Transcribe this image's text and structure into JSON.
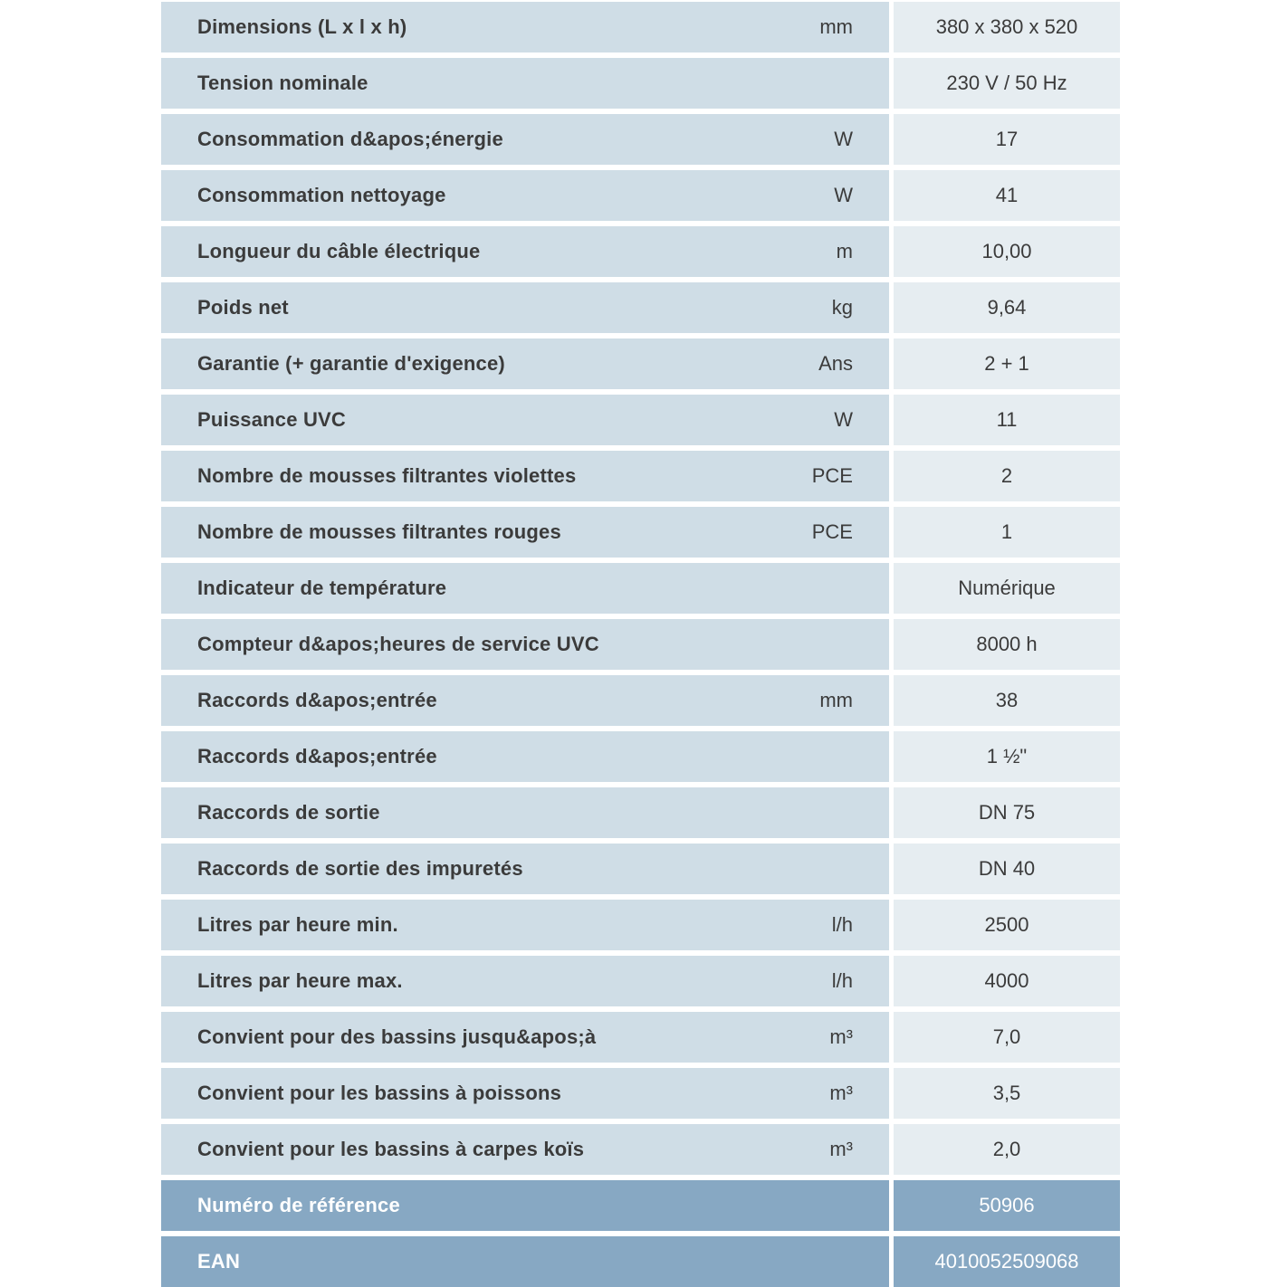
{
  "page": {
    "background": "#ffffff"
  },
  "table": {
    "colors": {
      "label_cell_bg": "#cfdde6",
      "value_cell_bg": "#e6edf1",
      "footer_bg": "#87a8c3",
      "text": "#3b3b3b",
      "footer_text": "#ffffff"
    },
    "rows": [
      {
        "label": "Dimensions (L x l x h)",
        "unit": "mm",
        "value": "380 x 380 x 520",
        "footer": false
      },
      {
        "label": "Tension nominale",
        "unit": "",
        "value": "230 V / 50 Hz",
        "footer": false
      },
      {
        "label": "Consommation d&apos;énergie",
        "unit": "W",
        "value": "17",
        "footer": false
      },
      {
        "label": "Consommation nettoyage",
        "unit": "W",
        "value": "41",
        "footer": false
      },
      {
        "label": "Longueur du câble électrique",
        "unit": "m",
        "value": "10,00",
        "footer": false
      },
      {
        "label": "Poids net",
        "unit": "kg",
        "value": "9,64",
        "footer": false
      },
      {
        "label": "Garantie (+ garantie d'exigence)",
        "unit": "Ans",
        "value": "2 + 1",
        "footer": false
      },
      {
        "label": "Puissance UVC",
        "unit": "W",
        "value": "11",
        "footer": false
      },
      {
        "label": "Nombre de mousses filtrantes violettes",
        "unit": "PCE",
        "value": "2",
        "footer": false
      },
      {
        "label": "Nombre de mousses filtrantes rouges",
        "unit": "PCE",
        "value": "1",
        "footer": false
      },
      {
        "label": "Indicateur de température",
        "unit": "",
        "value": "Numérique",
        "footer": false
      },
      {
        "label": "Compteur d&apos;heures de service UVC",
        "unit": "",
        "value": "8000 h",
        "footer": false
      },
      {
        "label": "Raccords d&apos;entrée",
        "unit": "mm",
        "value": "38",
        "footer": false
      },
      {
        "label": "Raccords d&apos;entrée",
        "unit": "",
        "value": "1 ½\"",
        "footer": false
      },
      {
        "label": "Raccords de sortie",
        "unit": "",
        "value": "DN 75",
        "footer": false
      },
      {
        "label": "Raccords de sortie des impuretés",
        "unit": "",
        "value": "DN 40",
        "footer": false
      },
      {
        "label": "Litres par heure min.",
        "unit": "l/h",
        "value": "2500",
        "footer": false
      },
      {
        "label": "Litres par heure max.",
        "unit": "l/h",
        "value": "4000",
        "footer": false
      },
      {
        "label": "Convient pour des bassins jusqu&apos;à",
        "unit": "m³",
        "value": "7,0",
        "footer": false
      },
      {
        "label": "Convient pour les bassins à poissons",
        "unit": "m³",
        "value": "3,5",
        "footer": false
      },
      {
        "label": "Convient pour les bassins à carpes koïs",
        "unit": "m³",
        "value": "2,0",
        "footer": false
      },
      {
        "label": "Numéro de référence",
        "unit": "",
        "value": "50906",
        "footer": true
      },
      {
        "label": "EAN",
        "unit": "",
        "value": "4010052509068",
        "footer": true
      }
    ]
  }
}
